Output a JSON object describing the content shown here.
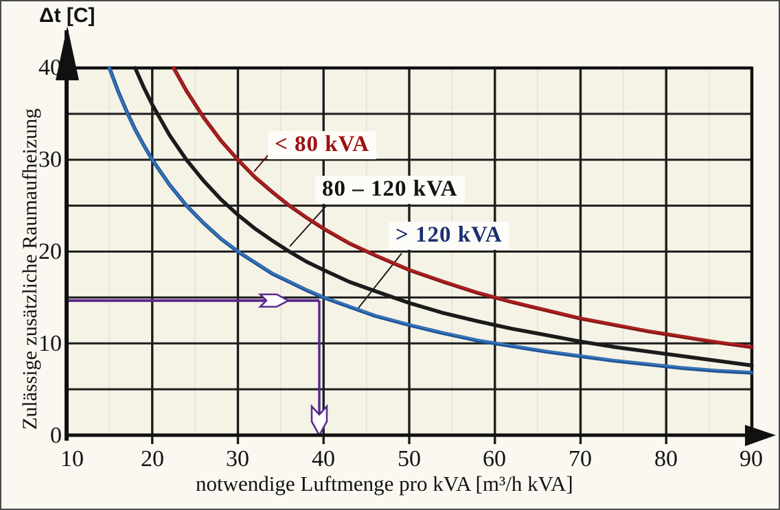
{
  "figure": {
    "background": "#faf8f1",
    "plot_background": "#f5f2e6",
    "grid_color": "#1d1d1d",
    "axis_color": "#111111"
  },
  "chart_data": {
    "type": "line",
    "title": "",
    "xlabel": "notwendige Luftmenge pro kVA [m³/h kVA]",
    "ylabel": "Zulässige zusätzliche Raumaufheizung",
    "y_unit_label": "Δt [C]",
    "xlim": [
      10,
      90
    ],
    "ylim": [
      0,
      40
    ],
    "x_ticks": [
      10,
      20,
      30,
      40,
      50,
      60,
      70,
      80,
      90
    ],
    "y_ticks": [
      40,
      30,
      20,
      10,
      0
    ],
    "x_gridline_step": 10,
    "y_gridline_step": 5,
    "grid": true,
    "legend_position": "inline-labels",
    "series": [
      {
        "name": "> 120 kVA",
        "color": "#1d5496",
        "highlight_color": "#3b79bf",
        "label_color": "#1c2f70",
        "points": [
          [
            15,
            40
          ],
          [
            16,
            37.5
          ],
          [
            17,
            35.3
          ],
          [
            18,
            33.3
          ],
          [
            19,
            31.6
          ],
          [
            20,
            30
          ],
          [
            22,
            27.3
          ],
          [
            24,
            25
          ],
          [
            26,
            23.1
          ],
          [
            28,
            21.4
          ],
          [
            30,
            20
          ],
          [
            32,
            18.8
          ],
          [
            34,
            17.6
          ],
          [
            36,
            16.7
          ],
          [
            38,
            15.8
          ],
          [
            40,
            15
          ],
          [
            43,
            14
          ],
          [
            46,
            13
          ],
          [
            50,
            12
          ],
          [
            54,
            11.1
          ],
          [
            58,
            10.3
          ],
          [
            62,
            9.7
          ],
          [
            66,
            9.1
          ],
          [
            70,
            8.6
          ],
          [
            74,
            8.1
          ],
          [
            78,
            7.7
          ],
          [
            82,
            7.3
          ],
          [
            86,
            7.0
          ],
          [
            90,
            6.8
          ]
        ]
      },
      {
        "name": "80 – 120 kVA",
        "color": "#1b1b1b",
        "highlight_color": "#1b1b1b",
        "label_color": "#131313",
        "points": [
          [
            18,
            40
          ],
          [
            19,
            37.9
          ],
          [
            20,
            36
          ],
          [
            22,
            32.7
          ],
          [
            24,
            30
          ],
          [
            26,
            27.7
          ],
          [
            28,
            25.7
          ],
          [
            30,
            24
          ],
          [
            32,
            22.5
          ],
          [
            34,
            21.2
          ],
          [
            36,
            20
          ],
          [
            38,
            18.9
          ],
          [
            40,
            18
          ],
          [
            43,
            16.7
          ],
          [
            46,
            15.7
          ],
          [
            50,
            14.4
          ],
          [
            54,
            13.3
          ],
          [
            58,
            12.4
          ],
          [
            62,
            11.6
          ],
          [
            66,
            10.9
          ],
          [
            70,
            10.2
          ],
          [
            74,
            9.6
          ],
          [
            78,
            9.1
          ],
          [
            82,
            8.6
          ],
          [
            86,
            8.1
          ],
          [
            90,
            7.6
          ]
        ]
      },
      {
        "name": "< 80 kVA",
        "color": "#8a1616",
        "highlight_color": "#b42222",
        "label_color": "#9c1212",
        "points": [
          [
            22.5,
            40
          ],
          [
            24,
            37.5
          ],
          [
            26,
            34.6
          ],
          [
            28,
            32.1
          ],
          [
            30,
            30
          ],
          [
            32,
            28.1
          ],
          [
            34,
            26.5
          ],
          [
            36,
            25
          ],
          [
            38,
            23.7
          ],
          [
            40,
            22.5
          ],
          [
            43,
            20.9
          ],
          [
            46,
            19.6
          ],
          [
            50,
            18
          ],
          [
            54,
            16.7
          ],
          [
            58,
            15.5
          ],
          [
            62,
            14.5
          ],
          [
            66,
            13.6
          ],
          [
            70,
            12.7
          ],
          [
            74,
            12
          ],
          [
            78,
            11.3
          ],
          [
            82,
            10.7
          ],
          [
            86,
            10.1
          ],
          [
            90,
            9.6
          ]
        ]
      }
    ],
    "annotation": {
      "description": "reading example: at Δt = 15 the required air flow is ~40 m³/h per kVA",
      "delta_t": 15,
      "air_flow": 39.5,
      "color": "#5b2a8f"
    }
  }
}
